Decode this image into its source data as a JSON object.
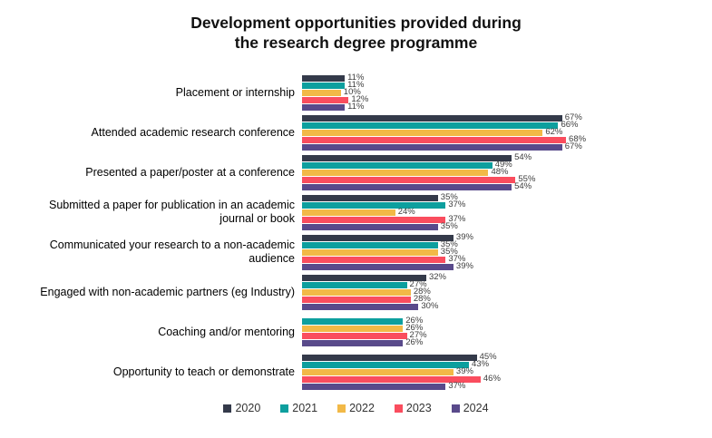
{
  "chart_data": {
    "type": "bar",
    "orientation": "horizontal",
    "title": "Development opportunities provided during the research degree programme",
    "title_lines": [
      "Development opportunities provided during",
      "the research degree programme"
    ],
    "xlabel": "",
    "ylabel": "",
    "xlim": [
      0,
      100
    ],
    "grid": false,
    "legend_position": "bottom",
    "value_label_format": "percent",
    "categories": [
      "Placement or internship",
      "Attended academic research conference",
      "Presented a paper/poster at a conference",
      "Submitted a paper for publication in an academic journal or book",
      "Communicated your research to a non-academic audience",
      "Engaged with non-academic partners (eg Industry)",
      "Coaching and/or mentoring",
      "Opportunity to teach or demonstrate"
    ],
    "series": [
      {
        "name": "2020",
        "color": "#343a4a",
        "values": [
          11,
          67,
          54,
          35,
          39,
          32,
          null,
          45
        ]
      },
      {
        "name": "2021",
        "color": "#0d9f9e",
        "values": [
          11,
          66,
          49,
          37,
          35,
          27,
          26,
          43
        ]
      },
      {
        "name": "2022",
        "color": "#f2b947",
        "values": [
          10,
          62,
          48,
          24,
          35,
          28,
          26,
          39
        ]
      },
      {
        "name": "2023",
        "color": "#fa4d5e",
        "values": [
          12,
          68,
          55,
          37,
          37,
          28,
          27,
          46
        ]
      },
      {
        "name": "2024",
        "color": "#594a8b",
        "values": [
          11,
          67,
          54,
          35,
          39,
          30,
          26,
          37
        ]
      }
    ]
  }
}
